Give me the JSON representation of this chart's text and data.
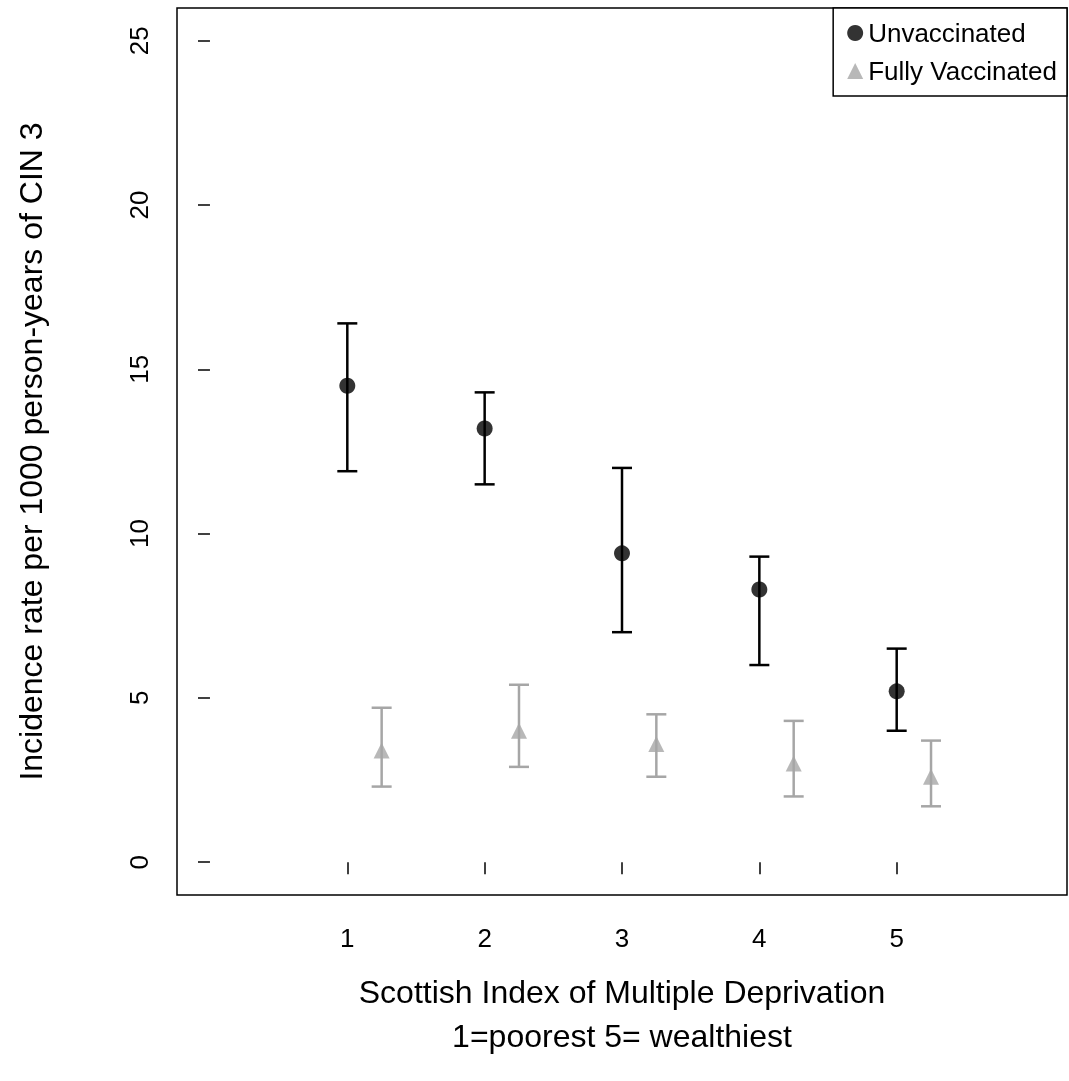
{
  "chart_data": {
    "type": "scatter",
    "xlabel": "Scottish Index of Multiple Deprivation\n1=poorest 5= wealthiest",
    "ylabel": "Incidence rate per 1000 person-years of CIN 3",
    "xlim": [
      -0.24,
      6.24
    ],
    "xticks": [
      1,
      2,
      3,
      4,
      5
    ],
    "ylim": [
      -1,
      26
    ],
    "yticks": [
      0,
      5,
      10,
      15,
      20,
      25
    ],
    "legend": "top right",
    "grid": false,
    "series": [
      {
        "name": "Unvaccinated",
        "color": "#000000",
        "marker": "circle",
        "x": [
          1,
          2,
          3,
          4,
          5
        ],
        "values": [
          14.5,
          13.2,
          9.4,
          8.3,
          5.2
        ],
        "errors": [
          [
            11.9,
            16.4
          ],
          [
            11.5,
            14.3
          ],
          [
            7.0,
            12.0
          ],
          [
            6.0,
            9.3
          ],
          [
            4.0,
            6.5
          ]
        ]
      },
      {
        "name": "Fully Vaccinated",
        "color": "#a6a6a6",
        "marker": "triangle",
        "x": [
          1.25,
          2.25,
          3.25,
          4.25,
          5.25
        ],
        "values": [
          3.4,
          4.0,
          3.6,
          3.0,
          2.6
        ],
        "errors": [
          [
            2.3,
            4.7
          ],
          [
            2.9,
            5.4
          ],
          [
            2.6,
            4.5
          ],
          [
            2.0,
            4.3
          ],
          [
            1.7,
            3.7
          ]
        ]
      }
    ]
  }
}
